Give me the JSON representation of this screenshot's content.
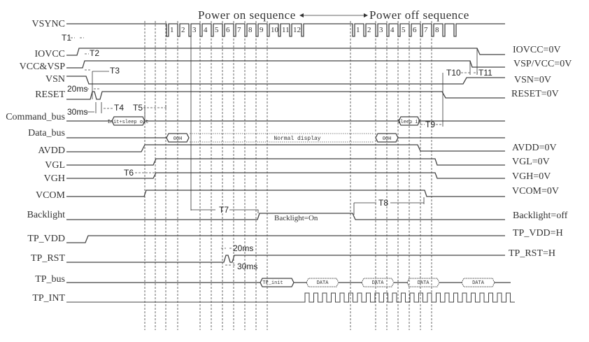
{
  "titles": {
    "power_on": "Power on sequence",
    "power_off": "Power off sequence"
  },
  "signals": {
    "vsync": "VSYNC",
    "iovcc": "IOVCC",
    "vcc_vsp": "VCC&VSP",
    "vsn": "VSN",
    "reset": "RESET",
    "command_bus": "Command_bus",
    "data_bus": "Data_bus",
    "avdd": "AVDD",
    "vgl": "VGL",
    "vgh": "VGH",
    "vcom": "VCOM",
    "backlight": "Backlight",
    "tp_vdd": "TP_VDD",
    "tp_rst": "TP_RST",
    "tp_bus": "TP_bus",
    "tp_int": "TP_INT"
  },
  "end_states": {
    "iovcc": "IOVCC=0V",
    "vsp_vcc": "VSP/VCC=0V",
    "vsn": "VSN=0V",
    "reset": "RESET=0V",
    "avdd": "AVDD=0V",
    "vgl": "VGL=0V",
    "vgh": "VGH=0V",
    "vcom": "VCOM=0V",
    "backlight": "Backlight=off",
    "tp_vdd": "TP_VDD=H",
    "tp_rst": "TP_RST=H"
  },
  "frames_on": [
    "1",
    "2",
    "3",
    "4",
    "5",
    "6",
    "7",
    "8",
    "9",
    "10",
    "11",
    "12"
  ],
  "frames_off": [
    "1",
    "2",
    "3",
    "4",
    "5",
    "6",
    "7",
    "8"
  ],
  "timings": {
    "t1": "T1",
    "t2": "T2",
    "t3": "T3",
    "t4": "T4",
    "t5": "T5",
    "t6": "T6",
    "t7": "T7",
    "t8": "T8",
    "t9": "T9",
    "t10": "T10",
    "t11": "T11",
    "reset_20ms": "20ms",
    "reset_30ms": "30ms",
    "tprst_20ms": "20ms",
    "tprst_30ms": "30ms"
  },
  "boxes": {
    "init_sleep_out": "Init+sleep out",
    "sleep_in": "Sleep in",
    "data_00h_on": "00H",
    "normal_display": "Normal display",
    "data_00h_off": "00H",
    "tp_init": "TP_init",
    "data": [
      "DATA",
      "DATA",
      "DATA",
      "DATA"
    ]
  },
  "backlight_on": "Backlight=On"
}
